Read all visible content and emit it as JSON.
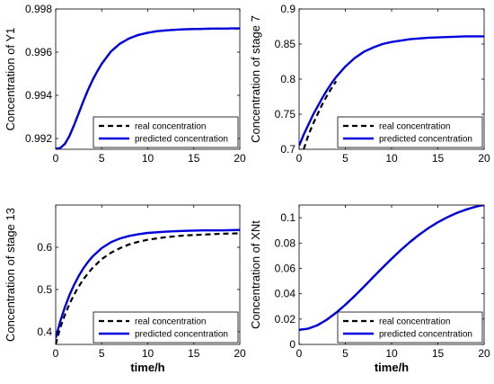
{
  "chart_data": [
    {
      "type": "line",
      "ylabel": "Concentration of Y1",
      "xlabel": "",
      "xlim": [
        0,
        20
      ],
      "ylim": [
        0.9915,
        0.998
      ],
      "xticks": [
        0,
        5,
        10,
        15,
        20
      ],
      "yticks": [
        0.992,
        0.994,
        0.996,
        0.998
      ],
      "ytick_labels": [
        "0.992",
        "0.994",
        "0.996",
        "0.998"
      ],
      "legend": "bottom-right",
      "series": [
        {
          "name": "real concentration",
          "style": "dashed",
          "color": "#000000",
          "x": [
            0,
            0.5,
            1,
            1.5,
            2,
            2.5,
            3,
            3.5,
            4,
            4.5,
            5,
            6,
            7,
            8,
            9,
            10,
            11,
            12,
            13,
            14,
            15,
            16,
            17,
            18,
            19,
            20
          ],
          "y": [
            0.99152,
            0.99156,
            0.99175,
            0.99212,
            0.99262,
            0.99317,
            0.99372,
            0.99424,
            0.9947,
            0.9951,
            0.99546,
            0.99603,
            0.9964,
            0.99664,
            0.9968,
            0.9969,
            0.99697,
            0.99701,
            0.99704,
            0.99706,
            0.99707,
            0.99708,
            0.99709,
            0.99709,
            0.9971,
            0.9971
          ]
        },
        {
          "name": "predicted concentration",
          "style": "solid",
          "color": "#0000dd",
          "x": [
            0,
            0.5,
            1,
            1.5,
            2,
            2.5,
            3,
            3.5,
            4,
            4.5,
            5,
            6,
            7,
            8,
            9,
            10,
            11,
            12,
            13,
            14,
            15,
            16,
            17,
            18,
            19,
            20
          ],
          "y": [
            0.99152,
            0.99156,
            0.99175,
            0.99212,
            0.99262,
            0.99317,
            0.99372,
            0.99424,
            0.9947,
            0.9951,
            0.99546,
            0.99603,
            0.9964,
            0.99664,
            0.9968,
            0.9969,
            0.99697,
            0.99701,
            0.99704,
            0.99706,
            0.99707,
            0.99708,
            0.99709,
            0.99709,
            0.9971,
            0.9971
          ]
        }
      ]
    },
    {
      "type": "line",
      "ylabel": "Concentration of stage 7",
      "xlabel": "",
      "xlim": [
        0,
        20
      ],
      "ylim": [
        0.7,
        0.9
      ],
      "xticks": [
        0,
        5,
        10,
        15,
        20
      ],
      "yticks": [
        0.7,
        0.75,
        0.8,
        0.85,
        0.9
      ],
      "ytick_labels": [
        "0.7",
        "0.75",
        "0.8",
        "0.85",
        "0.9"
      ],
      "legend": "bottom-right",
      "series": [
        {
          "name": "real concentration",
          "style": "dashed",
          "color": "#000000",
          "x": [
            0.5,
            1,
            1.5,
            2,
            2.5,
            3,
            3.5,
            4
          ],
          "y": [
            0.7,
            0.72,
            0.736,
            0.75,
            0.764,
            0.776,
            0.787,
            0.797
          ]
        },
        {
          "name": "predicted concentration",
          "style": "solid",
          "color": "#0000dd",
          "x": [
            0,
            0.5,
            1,
            1.5,
            2,
            2.5,
            3,
            3.5,
            4,
            5,
            6,
            7,
            8,
            9,
            10,
            12,
            14,
            16,
            18,
            20
          ],
          "y": [
            0.705,
            0.721,
            0.735,
            0.749,
            0.761,
            0.773,
            0.784,
            0.794,
            0.803,
            0.818,
            0.83,
            0.839,
            0.845,
            0.85,
            0.853,
            0.857,
            0.859,
            0.86,
            0.861,
            0.861
          ]
        }
      ]
    },
    {
      "type": "line",
      "ylabel": "Concentration of stage 13",
      "xlabel": "time/h",
      "xlim": [
        0,
        20
      ],
      "ylim": [
        0.37,
        0.7
      ],
      "xticks": [
        0,
        5,
        10,
        15,
        20
      ],
      "yticks": [
        0.4,
        0.5,
        0.6
      ],
      "ytick_labels": [
        "0.4",
        "0.5",
        "0.6"
      ],
      "legend": "bottom-right",
      "series": [
        {
          "name": "real concentration",
          "style": "dashed",
          "color": "#000000",
          "x": [
            0,
            0.5,
            1,
            1.5,
            2,
            2.5,
            3,
            3.5,
            4,
            5,
            6,
            7,
            8,
            9,
            10,
            12,
            14,
            16,
            18,
            20
          ],
          "y": [
            0.37,
            0.41,
            0.44,
            0.466,
            0.488,
            0.507,
            0.524,
            0.538,
            0.551,
            0.572,
            0.587,
            0.598,
            0.607,
            0.613,
            0.618,
            0.624,
            0.628,
            0.63,
            0.632,
            0.633
          ]
        },
        {
          "name": "predicted concentration",
          "style": "solid",
          "color": "#0000dd",
          "x": [
            0,
            0.5,
            1,
            1.5,
            2,
            2.5,
            3,
            3.5,
            4,
            5,
            6,
            7,
            8,
            9,
            10,
            12,
            14,
            16,
            18,
            20
          ],
          "y": [
            0.385,
            0.425,
            0.458,
            0.487,
            0.511,
            0.532,
            0.55,
            0.565,
            0.578,
            0.598,
            0.612,
            0.621,
            0.627,
            0.631,
            0.634,
            0.637,
            0.639,
            0.64,
            0.64,
            0.641
          ]
        }
      ]
    },
    {
      "type": "line",
      "ylabel": "Concentration of XNt",
      "xlabel": "time/h",
      "xlim": [
        0,
        20
      ],
      "ylim": [
        0,
        0.11
      ],
      "xticks": [
        0,
        5,
        10,
        15,
        20
      ],
      "yticks": [
        0,
        0.02,
        0.04,
        0.06,
        0.08,
        0.1
      ],
      "ytick_labels": [
        "0",
        "0.02",
        "0.04",
        "0.06",
        "0.08",
        "0.1"
      ],
      "legend": "bottom-right",
      "series": [
        {
          "name": "real concentration",
          "style": "dashed",
          "color": "#000000",
          "x": [
            0,
            1,
            2,
            3,
            4,
            5,
            6,
            7,
            8,
            9,
            10,
            11,
            12,
            13,
            14,
            15,
            16,
            17,
            18,
            19,
            20
          ],
          "y": [
            0.0115,
            0.0125,
            0.0152,
            0.0195,
            0.025,
            0.0313,
            0.0382,
            0.0455,
            0.053,
            0.0604,
            0.0676,
            0.0745,
            0.0809,
            0.0867,
            0.0919,
            0.0964,
            0.1003,
            0.1036,
            0.1063,
            0.1085,
            0.1102
          ]
        },
        {
          "name": "predicted concentration",
          "style": "solid",
          "color": "#0000dd",
          "x": [
            0,
            1,
            2,
            3,
            4,
            5,
            6,
            7,
            8,
            9,
            10,
            11,
            12,
            13,
            14,
            15,
            16,
            17,
            18,
            19,
            20
          ],
          "y": [
            0.0115,
            0.0125,
            0.0152,
            0.0195,
            0.025,
            0.0313,
            0.0382,
            0.0455,
            0.053,
            0.0604,
            0.0676,
            0.0745,
            0.0809,
            0.0867,
            0.0919,
            0.0964,
            0.1003,
            0.1036,
            0.1063,
            0.1085,
            0.1102
          ]
        }
      ]
    }
  ]
}
